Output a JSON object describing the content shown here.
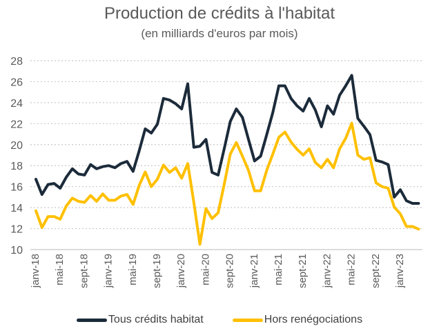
{
  "chart_data": {
    "type": "line",
    "title": "Production de crédits à l'habitat",
    "subtitle": "(en milliards d'euros par mois)",
    "xlabel": "",
    "ylabel": "",
    "ylim": [
      10,
      28
    ],
    "yticks": [
      10,
      12,
      14,
      16,
      18,
      20,
      22,
      24,
      26,
      28
    ],
    "grid": "horizontal dotted",
    "legend": "bottom",
    "x_start": "janv-18",
    "x_end": "avr-23",
    "xtick_labels": [
      "janv-18",
      "mai-18",
      "sept-18",
      "janv-19",
      "mai-19",
      "sept-19",
      "janv-20",
      "mai-20",
      "sept-20",
      "janv-21",
      "mai-21",
      "sept-21",
      "janv-22",
      "mai-22",
      "sept-22",
      "janv-23"
    ],
    "series": [
      {
        "name": "Tous crédits habitat",
        "color": "#1c2b3a",
        "values": [
          16.7,
          15.25,
          16.2,
          16.3,
          15.85,
          16.9,
          17.7,
          17.2,
          17.1,
          18.1,
          17.7,
          17.9,
          18.0,
          17.8,
          18.2,
          18.4,
          17.45,
          19.4,
          21.5,
          21.1,
          21.95,
          24.4,
          24.25,
          23.9,
          23.4,
          25.8,
          19.75,
          19.85,
          20.5,
          17.35,
          17.1,
          19.6,
          22.2,
          23.4,
          22.6,
          20.5,
          18.45,
          18.9,
          20.95,
          23.05,
          25.6,
          25.6,
          24.4,
          23.7,
          23.2,
          24.4,
          23.3,
          21.7,
          23.7,
          22.9,
          24.7,
          25.6,
          26.6,
          22.5,
          21.75,
          20.95,
          18.5,
          18.35,
          18.1,
          15.0,
          15.7,
          14.65,
          14.4,
          14.4
        ]
      },
      {
        "name": "Hors renégociations",
        "color": "#ffc000",
        "values": [
          13.7,
          12.1,
          13.15,
          13.15,
          12.9,
          14.15,
          14.9,
          14.6,
          14.5,
          15.15,
          14.6,
          15.3,
          14.7,
          14.7,
          15.1,
          15.25,
          14.3,
          16.1,
          17.4,
          16.0,
          16.7,
          18.05,
          17.35,
          17.8,
          16.8,
          18.2,
          14.5,
          10.5,
          13.9,
          12.95,
          13.5,
          16.2,
          19.1,
          20.2,
          18.9,
          17.55,
          15.6,
          15.6,
          17.55,
          19.1,
          20.7,
          21.2,
          20.25,
          19.55,
          19.0,
          19.6,
          18.3,
          17.8,
          18.6,
          17.8,
          19.6,
          20.6,
          22.05,
          19.0,
          18.6,
          18.75,
          16.35,
          16.0,
          15.85,
          14.05,
          13.4,
          12.2,
          12.2,
          11.95
        ]
      }
    ]
  }
}
